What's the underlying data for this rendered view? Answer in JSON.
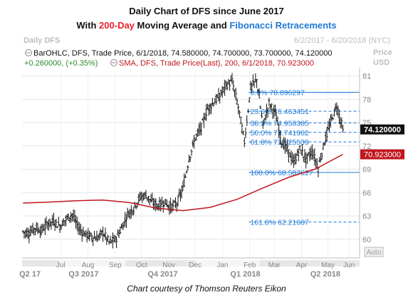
{
  "header": {
    "title": "Daily Chart of DFS since June 2017",
    "subtitle_parts": [
      "With ",
      "200-Day",
      " Moving Average and ",
      "Fibonacci Retracements"
    ],
    "symbol_label": "Daily DFS",
    "date_range": "6/2/2017 - 6/20/2018 (NYC)",
    "y_unit_1": "Price",
    "y_unit_2": "USD",
    "legend_ohlc": "BarOHLC, DFS, Trade Price, 6/1/2018, 74.580000, 74.700000, 73.700000, 74.120000",
    "legend_change": "+0.260000, (+0.35%)",
    "legend_sma": "SMA, DFS, Trade Price(Last),  200, 6/1/2018, 70.923000",
    "auto_label": "Auto"
  },
  "footer": "Chart courtesy of Thomson Reuters Eikon",
  "colors": {
    "price": "#111111",
    "sma": "#c0161d",
    "fib": "#1e7ad6",
    "title_red": "#e8202a",
    "title_blue": "#1e7ad6"
  },
  "chart_data": {
    "type": "line",
    "series": [
      {
        "name": "BarOHLC, DFS",
        "kind": "ohlc",
        "points": [
          [
            "2017-06-02",
            61.0
          ],
          [
            "2017-06-09",
            60.8
          ],
          [
            "2017-06-16",
            61.5
          ],
          [
            "2017-06-23",
            61.1
          ],
          [
            "2017-06-30",
            62.0
          ],
          [
            "2017-07-07",
            62.3
          ],
          [
            "2017-07-14",
            61.7
          ],
          [
            "2017-07-21",
            62.6
          ],
          [
            "2017-07-28",
            63.2
          ],
          [
            "2017-08-04",
            61.5
          ],
          [
            "2017-08-11",
            60.7
          ],
          [
            "2017-08-18",
            60.4
          ],
          [
            "2017-08-25",
            60.1
          ],
          [
            "2017-09-01",
            60.9
          ],
          [
            "2017-09-08",
            59.6
          ],
          [
            "2017-09-15",
            59.9
          ],
          [
            "2017-09-22",
            61.4
          ],
          [
            "2017-09-29",
            63.2
          ],
          [
            "2017-10-06",
            64.0
          ],
          [
            "2017-10-13",
            65.4
          ],
          [
            "2017-10-20",
            65.7
          ],
          [
            "2017-10-27",
            64.7
          ],
          [
            "2017-11-03",
            64.3
          ],
          [
            "2017-11-10",
            64.8
          ],
          [
            "2017-11-17",
            64.1
          ],
          [
            "2017-11-24",
            64.6
          ],
          [
            "2017-12-01",
            66.5
          ],
          [
            "2017-12-08",
            70.4
          ],
          [
            "2017-12-15",
            73.0
          ],
          [
            "2017-12-22",
            74.4
          ],
          [
            "2017-12-29",
            76.8
          ],
          [
            "2018-01-05",
            77.6
          ],
          [
            "2018-01-12",
            78.4
          ],
          [
            "2018-01-19",
            79.8
          ],
          [
            "2018-01-26",
            80.3
          ],
          [
            "2018-02-02",
            77.0
          ],
          [
            "2018-02-09",
            72.5
          ],
          [
            "2018-02-16",
            79.5
          ],
          [
            "2018-02-23",
            80.5
          ],
          [
            "2018-03-02",
            74.6
          ],
          [
            "2018-03-09",
            77.5
          ],
          [
            "2018-03-16",
            76.2
          ],
          [
            "2018-03-23",
            72.6
          ],
          [
            "2018-03-30",
            71.5
          ],
          [
            "2018-04-06",
            69.8
          ],
          [
            "2018-04-13",
            71.6
          ],
          [
            "2018-04-20",
            70.3
          ],
          [
            "2018-04-27",
            71.3
          ],
          [
            "2018-05-04",
            69.2
          ],
          [
            "2018-05-11",
            72.5
          ],
          [
            "2018-05-18",
            75.0
          ],
          [
            "2018-05-25",
            77.2
          ],
          [
            "2018-06-01",
            74.12
          ]
        ]
      },
      {
        "name": "SMA, DFS, 200",
        "kind": "line",
        "points": [
          [
            "2017-06-02",
            64.65
          ],
          [
            "2017-07-01",
            64.78
          ],
          [
            "2017-08-01",
            64.96
          ],
          [
            "2017-09-01",
            65.05
          ],
          [
            "2017-10-01",
            64.72
          ],
          [
            "2017-11-01",
            64.0
          ],
          [
            "2017-12-01",
            63.68
          ],
          [
            "2018-01-01",
            64.1
          ],
          [
            "2018-02-01",
            65.15
          ],
          [
            "2018-03-01",
            66.55
          ],
          [
            "2018-04-01",
            68.0
          ],
          [
            "2018-05-01",
            69.05
          ],
          [
            "2018-06-01",
            70.923
          ]
        ]
      }
    ],
    "fibonacci_levels": [
      {
        "label": "0.0%",
        "value": 78.896297
      },
      {
        "label": "23.6%",
        "value": 76.463451
      },
      {
        "label": "38.2%",
        "value": 74.958385
      },
      {
        "label": "50.0%",
        "value": 73.741962
      },
      {
        "label": "61.8%",
        "value": 72.525539
      },
      {
        "label": "100.0%",
        "value": 68.587627
      },
      {
        "label": "161.8%",
        "value": 62.21687
      }
    ],
    "last_price": 74.12,
    "last_price_label": "74.120000",
    "sma_last_label": "70.923000",
    "y_ticks": [
      60,
      63,
      66,
      69,
      72,
      75,
      78,
      81
    ],
    "ylim": [
      57.6,
      81.6
    ],
    "x_month_labels": [
      "Jul",
      "Aug",
      "Sep",
      "Oct",
      "Nov",
      "Dec",
      "Jan",
      "Feb",
      "Mar",
      "Apr",
      "May",
      "Jun"
    ],
    "x_quarter_labels": [
      "Q2 17",
      "Q3 2017",
      "Q4 2017",
      "Q1 2018",
      "Q2 2018"
    ],
    "xlabel": "",
    "ylabel": "Price USD",
    "grid": true
  }
}
